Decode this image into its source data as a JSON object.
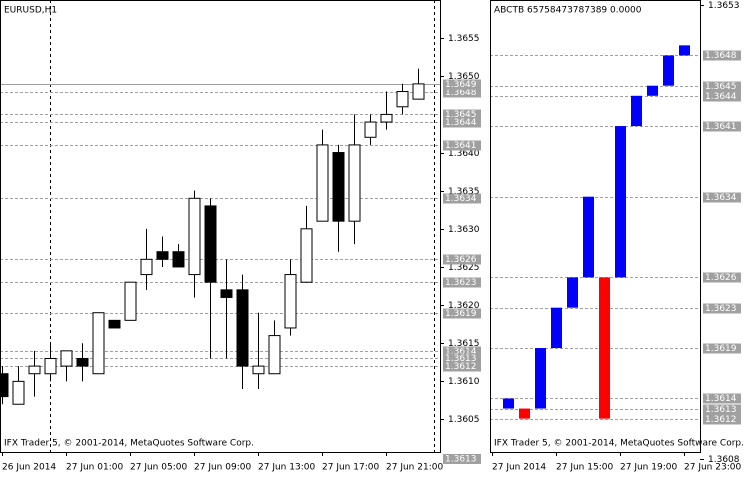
{
  "chart_data": [
    {
      "type": "candlestick",
      "title": "EURUSD,H1",
      "footer": "IFX Trader 5, © 2001-2014, MetaQuotes Software Corp.",
      "categories": [
        "26 Jun 2014",
        null,
        null,
        null,
        "27 Jun 01:00",
        null,
        null,
        null,
        "27 Jun 05:00",
        null,
        null,
        null,
        "27 Jun 09:00",
        null,
        null,
        null,
        "27 Jun 13:00",
        null,
        null,
        null,
        "27 Jun 17:00",
        null,
        null,
        null,
        "27 Jun 21:00",
        null,
        null
      ],
      "open": [
        1.3611,
        1.3607,
        1.3611,
        1.3611,
        1.3612,
        1.3613,
        1.3611,
        1.3618,
        1.3618,
        1.3624,
        1.3627,
        1.3627,
        1.3624,
        1.3633,
        1.3622,
        1.3622,
        1.3611,
        1.3611,
        1.3617,
        1.3623,
        1.3631,
        1.364,
        1.3631,
        1.3642,
        1.3644,
        1.3646,
        1.3647
      ],
      "high": [
        1.3612,
        1.3612,
        1.3614,
        1.3615,
        1.3614,
        1.3615,
        1.3619,
        1.3618,
        1.3623,
        1.363,
        1.3629,
        1.3628,
        1.3635,
        1.3634,
        1.3626,
        1.3624,
        1.3619,
        1.3618,
        1.3626,
        1.3633,
        1.3643,
        1.3641,
        1.3645,
        1.3645,
        1.3648,
        1.3649,
        1.3651
      ],
      "low": [
        1.3607,
        1.3607,
        1.3608,
        1.361,
        1.361,
        1.361,
        1.3611,
        1.3617,
        1.3618,
        1.3622,
        1.3625,
        1.3625,
        1.3621,
        1.3613,
        1.3613,
        1.3609,
        1.3609,
        1.3611,
        1.3616,
        1.3623,
        1.3631,
        1.3627,
        1.3628,
        1.3641,
        1.3643,
        1.3645,
        1.3647
      ],
      "close": [
        1.3608,
        1.361,
        1.3612,
        1.3613,
        1.3614,
        1.3612,
        1.3619,
        1.3617,
        1.3623,
        1.3626,
        1.3626,
        1.3625,
        1.3634,
        1.3623,
        1.3621,
        1.3612,
        1.3612,
        1.3616,
        1.3624,
        1.363,
        1.3641,
        1.3631,
        1.3641,
        1.3644,
        1.3645,
        1.3648,
        1.3649
      ],
      "up_color": "#ffffff",
      "down_color": "#000000",
      "ylim": [
        1.3601,
        1.366
      ],
      "yticks": [
        1.3655,
        {
          "value": 1.365,
          "label": "1.3650"
        },
        {
          "value": 1.364,
          "label": "1.3640"
        },
        1.3635,
        {
          "value": 1.363,
          "label": "1.3630"
        },
        1.3625,
        {
          "value": 1.362,
          "label": "1.3620"
        },
        1.3615,
        {
          "value": 1.361,
          "label": "1.3610"
        },
        1.3605
      ],
      "bid": 1.3649,
      "levels": [
        1.3648,
        1.3645,
        1.3644,
        1.3641,
        1.3634,
        1.3626,
        1.3623,
        1.3619,
        1.3614,
        1.3613,
        1.3612
      ],
      "bottom_label": 1.3613
    },
    {
      "type": "floating-bar",
      "title": "ABCTB 65758473787389 0.0000",
      "footer": "IFX Trader 5, © 2001-2014, MetaQuotes Software Corp.",
      "categories": [
        "27 Jun 2014",
        null,
        null,
        null,
        "27 Jun 15:00",
        null,
        null,
        null,
        "27 Jun 19:00",
        null,
        null,
        null,
        "27 Jun 23:00"
      ],
      "open": [
        null,
        1.3613,
        1.3613,
        1.3613,
        1.3619,
        1.3623,
        1.3626,
        1.3626,
        1.3626,
        1.3641,
        1.3644,
        1.3645,
        1.3648
      ],
      "close": [
        null,
        1.3614,
        1.3612,
        1.3619,
        1.3623,
        1.3626,
        1.3634,
        1.3612,
        1.3641,
        1.3644,
        1.3645,
        1.3648,
        1.3649
      ],
      "up_color": "#0000ff",
      "down_color": "#ff0000",
      "ylim": [
        1.3608,
        1.3653
      ],
      "yticks": [
        1.3653,
        1.3608
      ],
      "levels": [
        1.3648,
        1.3645,
        1.3644,
        1.3641,
        1.3634,
        1.3626,
        1.3623,
        1.3619,
        1.3614,
        1.3613,
        1.3612
      ]
    }
  ]
}
